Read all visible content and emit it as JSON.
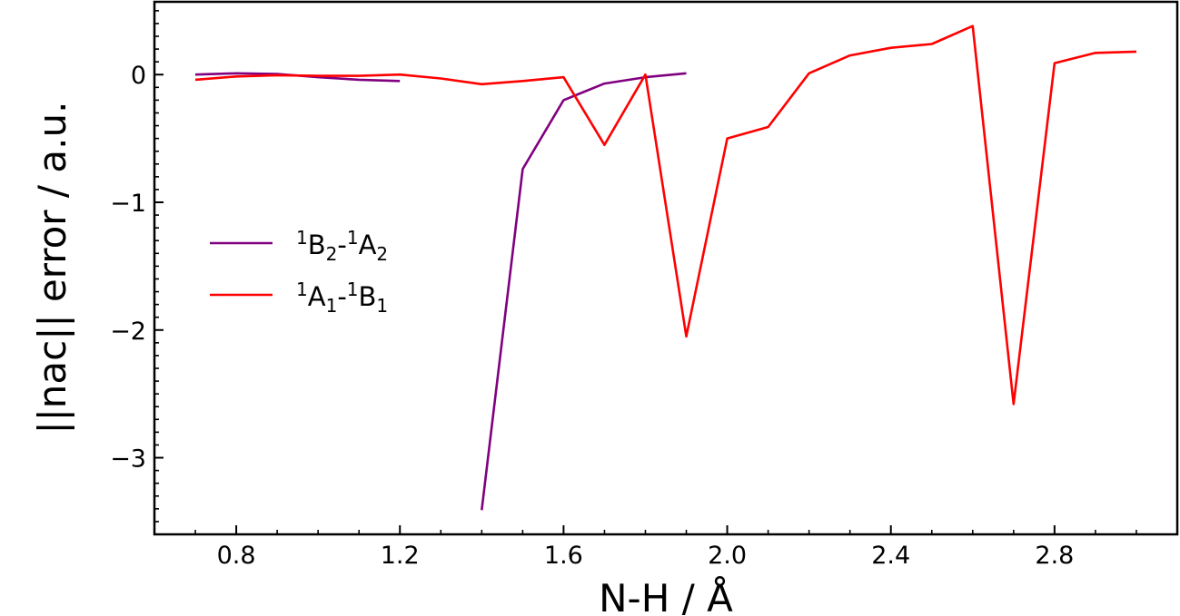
{
  "chart_data": {
    "type": "line",
    "xlabel": "N-H / Å",
    "ylabel": "||nac|| error / a.u.",
    "xlim": [
      0.6,
      3.1
    ],
    "ylim": [
      -3.6,
      0.57
    ],
    "x_ticks": [
      0.8,
      1.2,
      1.6,
      2.0,
      2.4,
      2.8
    ],
    "x_tick_labels": [
      "0.8",
      "1.2",
      "1.6",
      "2.0",
      "2.4",
      "2.8"
    ],
    "y_ticks": [
      0,
      -1,
      -2,
      -3
    ],
    "y_tick_labels": [
      "0",
      "−1",
      "−2",
      "−3"
    ],
    "grid": false,
    "legend_position": "center-left",
    "series": [
      {
        "name": "¹B₂-¹A₂",
        "legend": {
          "a": "1",
          "b": "B",
          "c": "2",
          "d": "-",
          "e": "1",
          "f": "A",
          "g": "2"
        },
        "color": "#800080",
        "segments": [
          {
            "x": [
              0.7,
              0.8,
              0.9,
              1.0,
              1.1,
              1.2
            ],
            "y": [
              0.0,
              0.01,
              0.005,
              -0.02,
              -0.04,
              -0.05
            ]
          },
          {
            "x": [
              1.4,
              1.5,
              1.6,
              1.7,
              1.8,
              1.9
            ],
            "y": [
              -3.41,
              -0.74,
              -0.2,
              -0.07,
              -0.02,
              0.01
            ]
          }
        ]
      },
      {
        "name": "¹A₁-¹B₁",
        "legend": {
          "a": "1",
          "b": "A",
          "c": "1",
          "d": "-",
          "e": "1",
          "f": "B",
          "g": "1"
        },
        "color": "#ff0000",
        "segments": [
          {
            "x": [
              0.7,
              0.8,
              0.9,
              1.0,
              1.1,
              1.2,
              1.3,
              1.4,
              1.5,
              1.6,
              1.7,
              1.8,
              1.9,
              2.0,
              2.1,
              2.2,
              2.3,
              2.4,
              2.5,
              2.6,
              2.7,
              2.8,
              2.9,
              3.0
            ],
            "y": [
              -0.04,
              -0.015,
              -0.005,
              -0.01,
              -0.01,
              0.0,
              -0.03,
              -0.075,
              -0.05,
              -0.02,
              -0.55,
              0.0,
              -2.05,
              -0.5,
              -0.41,
              0.01,
              0.15,
              0.21,
              0.24,
              0.38,
              -2.58,
              0.09,
              0.17,
              0.18
            ]
          }
        ]
      }
    ]
  }
}
